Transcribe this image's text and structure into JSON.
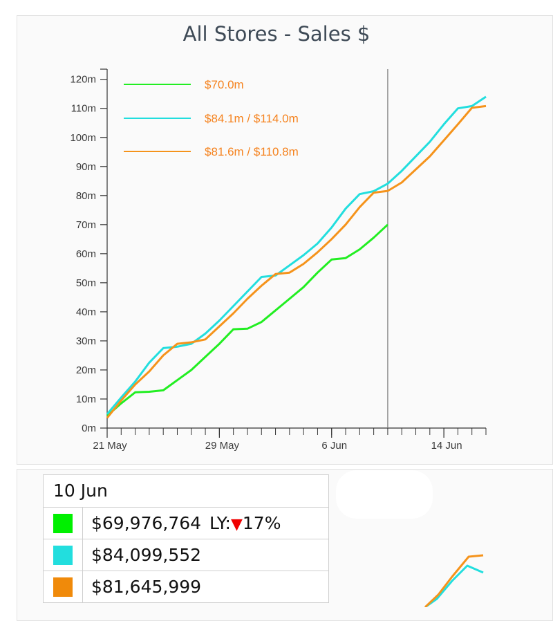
{
  "chart_data": {
    "type": "line",
    "title": "All Stores - Sales $",
    "x_tick_labels": [
      "21 May",
      "29 May",
      "6 Jun",
      "14 Jun"
    ],
    "x_range": [
      "2023-05-21",
      "2023-06-17"
    ],
    "hover_date": "2023-06-10",
    "ylim": [
      0,
      120
    ],
    "y_ticks": [
      {
        "value": 0,
        "label": "0m"
      },
      {
        "value": 10,
        "label": "10m"
      },
      {
        "value": 20,
        "label": "20m"
      },
      {
        "value": 30,
        "label": "30m"
      },
      {
        "value": 40,
        "label": "40m"
      },
      {
        "value": 50,
        "label": "50m"
      },
      {
        "value": 60,
        "label": "60m"
      },
      {
        "value": 70,
        "label": "70m"
      },
      {
        "value": 80,
        "label": "80m"
      },
      {
        "value": 90,
        "label": "90m"
      },
      {
        "value": 100,
        "label": "100m"
      },
      {
        "value": 110,
        "label": "110m"
      },
      {
        "value": 120,
        "label": "120m"
      }
    ],
    "legend_position": "top-left",
    "grid": false,
    "series": [
      {
        "name": "$70.0m",
        "color": "#22ee22",
        "x": [
          "2023-05-21",
          "2023-05-22",
          "2023-05-23",
          "2023-05-24",
          "2023-05-25",
          "2023-05-26",
          "2023-05-27",
          "2023-05-28",
          "2023-05-29",
          "2023-05-30",
          "2023-05-31",
          "2023-06-01",
          "2023-06-02",
          "2023-06-03",
          "2023-06-04",
          "2023-06-05",
          "2023-06-06",
          "2023-06-07",
          "2023-06-08",
          "2023-06-09",
          "2023-06-10"
        ],
        "values": [
          4.2,
          8.5,
          12.3,
          12.5,
          13.0,
          16.5,
          20.0,
          24.5,
          29.0,
          34.0,
          34.2,
          36.5,
          40.5,
          44.5,
          48.5,
          53.5,
          58.0,
          58.5,
          61.5,
          65.5,
          70.0
        ]
      },
      {
        "name": "$84.1m / $114.0m",
        "color": "#22dede",
        "x": [
          "2023-05-21",
          "2023-05-22",
          "2023-05-23",
          "2023-05-24",
          "2023-05-25",
          "2023-05-26",
          "2023-05-27",
          "2023-05-28",
          "2023-05-29",
          "2023-05-30",
          "2023-05-31",
          "2023-06-01",
          "2023-06-02",
          "2023-06-03",
          "2023-06-04",
          "2023-06-05",
          "2023-06-06",
          "2023-06-07",
          "2023-06-08",
          "2023-06-09",
          "2023-06-10",
          "2023-06-11",
          "2023-06-12",
          "2023-06-13",
          "2023-06-14",
          "2023-06-15",
          "2023-06-16",
          "2023-06-17"
        ],
        "values": [
          4.8,
          10.5,
          16.0,
          22.5,
          27.5,
          28.0,
          29.0,
          32.5,
          37.0,
          42.0,
          47.0,
          52.0,
          52.5,
          56.0,
          59.5,
          63.5,
          69.0,
          75.5,
          80.5,
          81.5,
          84.1,
          88.5,
          93.5,
          98.5,
          104.5,
          110.0,
          110.8,
          114.0
        ]
      },
      {
        "name": "$81.6m / $110.8m",
        "color": "#f5931b",
        "x": [
          "2023-05-21",
          "2023-05-22",
          "2023-05-23",
          "2023-05-24",
          "2023-05-25",
          "2023-05-26",
          "2023-05-27",
          "2023-05-28",
          "2023-05-29",
          "2023-05-30",
          "2023-05-31",
          "2023-06-01",
          "2023-06-02",
          "2023-06-03",
          "2023-06-04",
          "2023-06-05",
          "2023-06-06",
          "2023-06-07",
          "2023-06-08",
          "2023-06-09",
          "2023-06-10",
          "2023-06-11",
          "2023-06-12",
          "2023-06-13",
          "2023-06-14",
          "2023-06-15",
          "2023-06-16",
          "2023-06-17"
        ],
        "values": [
          3.5,
          9.5,
          15.0,
          19.5,
          25.0,
          29.0,
          29.5,
          30.5,
          35.0,
          39.5,
          44.5,
          49.0,
          53.0,
          53.5,
          56.5,
          60.5,
          65.0,
          70.0,
          76.0,
          81.0,
          81.6,
          84.5,
          89.0,
          93.5,
          99.0,
          104.5,
          110.2,
          110.8
        ]
      }
    ]
  },
  "tooltip": {
    "date": "10 Jun",
    "rows": [
      {
        "color": "#00f000",
        "value": "$69,976,764",
        "ly_label": "LY:",
        "ly_arrow": "▼",
        "ly_change": "17%"
      },
      {
        "color": "#22dede",
        "value": "$84,099,552"
      },
      {
        "color": "#f08a0a",
        "value": "$81,645,999"
      }
    ]
  }
}
